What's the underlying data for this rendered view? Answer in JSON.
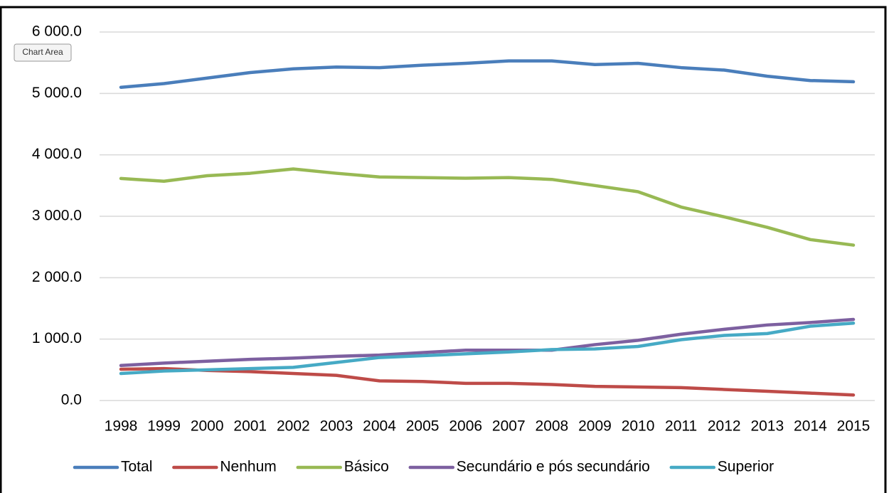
{
  "chart_data": {
    "type": "line",
    "tooltip": "Chart Area",
    "categories": [
      "1998",
      "1999",
      "2000",
      "2001",
      "2002",
      "2003",
      "2004",
      "2005",
      "2006",
      "2007",
      "2008",
      "2009",
      "2010",
      "2011",
      "2012",
      "2013",
      "2014",
      "2015"
    ],
    "series": [
      {
        "name": "Total",
        "color": "#4a7ebb",
        "values": [
          5100,
          5160,
          5250,
          5340,
          5400,
          5430,
          5420,
          5460,
          5490,
          5530,
          5530,
          5470,
          5490,
          5420,
          5380,
          5280,
          5210,
          5190
        ]
      },
      {
        "name": "Nenhum",
        "color": "#be4b48",
        "values": [
          510,
          520,
          490,
          470,
          440,
          410,
          320,
          310,
          280,
          280,
          260,
          230,
          220,
          210,
          180,
          150,
          120,
          90
        ]
      },
      {
        "name": "Básico",
        "color": "#98b954",
        "values": [
          3615,
          3570,
          3660,
          3700,
          3770,
          3700,
          3640,
          3630,
          3620,
          3630,
          3600,
          3500,
          3400,
          3150,
          2990,
          2820,
          2620,
          2530
        ]
      },
      {
        "name": "Secundário e pós secundário",
        "color": "#7d60a0",
        "values": [
          570,
          610,
          640,
          670,
          690,
          720,
          740,
          780,
          820,
          820,
          820,
          910,
          980,
          1080,
          1160,
          1230,
          1270,
          1320
        ]
      },
      {
        "name": "Superior",
        "color": "#46aac5",
        "values": [
          440,
          480,
          500,
          520,
          540,
          620,
          700,
          730,
          760,
          790,
          830,
          840,
          880,
          990,
          1060,
          1090,
          1210,
          1260
        ]
      }
    ],
    "ylim": [
      0,
      6000
    ],
    "yticks": [
      {
        "value": 0,
        "label": "0.0"
      },
      {
        "value": 1000,
        "label": "1 000.0"
      },
      {
        "value": 2000,
        "label": "2 000.0"
      },
      {
        "value": 3000,
        "label": "3 000.0"
      },
      {
        "value": 4000,
        "label": "4 000.0"
      },
      {
        "value": 5000,
        "label": "5 000.0"
      },
      {
        "value": 6000,
        "label": "6 000.0"
      }
    ],
    "grid": true,
    "legend": "bottom"
  }
}
